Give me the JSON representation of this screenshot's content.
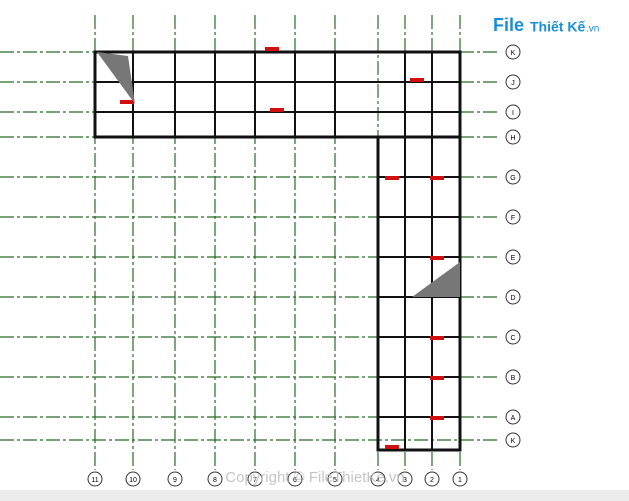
{
  "logo": {
    "brand": "File",
    "rest": "Thiết Kế",
    "suffix": ".vn"
  },
  "row_labels": [
    "K",
    "J",
    "I",
    "H",
    "G",
    "F",
    "E",
    "D",
    "C",
    "B",
    "A",
    "K"
  ],
  "column_labels": [
    "11",
    "10",
    "9",
    "8",
    "7",
    "6",
    "5",
    "4",
    "3",
    "2",
    "1"
  ],
  "watermark": "Copyright © FileThietKe.vn"
}
